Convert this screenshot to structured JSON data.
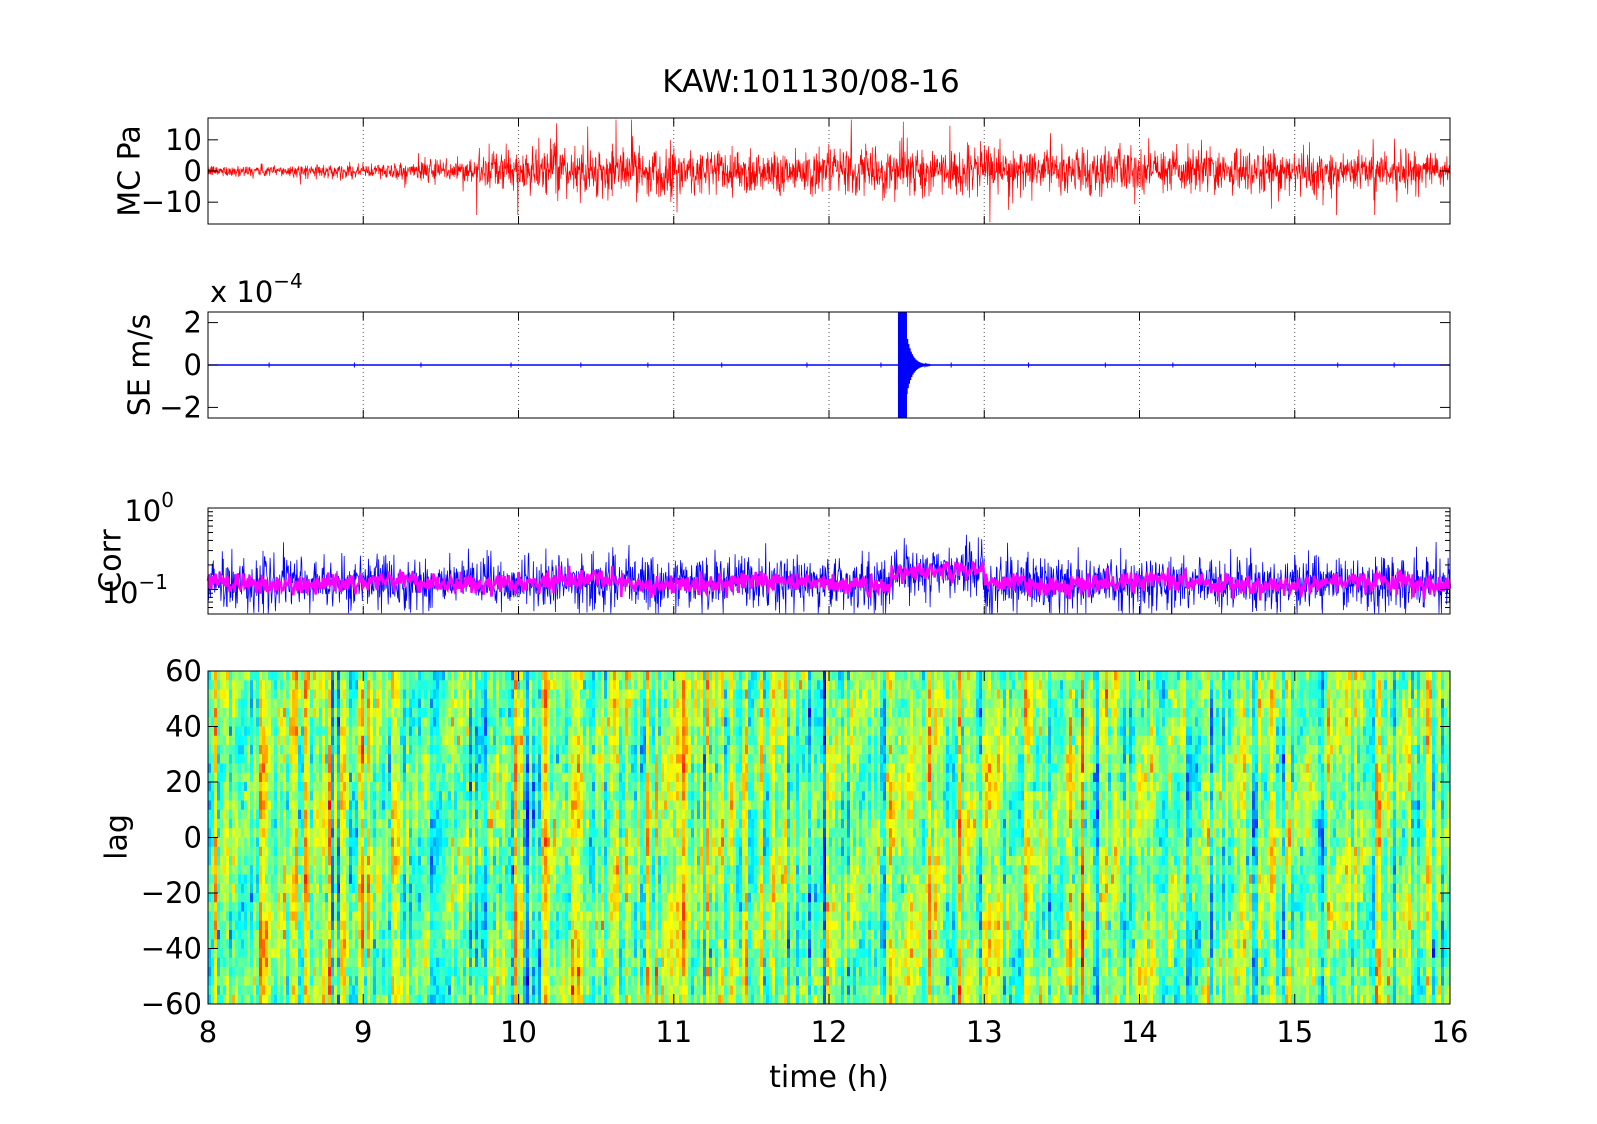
{
  "figure": {
    "title": "KAW:101130/08-16",
    "xlabel": "time (h)"
  },
  "chart_data": [
    {
      "type": "line",
      "panel": "MC",
      "ylabel": "MC Pa",
      "color": "#ff0000",
      "xlim": [
        8,
        16
      ],
      "ylim": [
        -17,
        17
      ],
      "yticks": [
        10,
        0,
        -10
      ],
      "ytick_labels": [
        "10",
        "0",
        "−10"
      ],
      "xticks": [
        9,
        10,
        11,
        12,
        13,
        14,
        15
      ],
      "grid": "dotted vertical",
      "amplitude_envelope": {
        "x": [
          8,
          9,
          9.5,
          10,
          11,
          12,
          12.5,
          13,
          14,
          15,
          16
        ],
        "y": [
          2,
          2.5,
          4,
          8,
          9,
          8,
          9,
          8,
          8,
          8,
          6
        ]
      }
    },
    {
      "type": "line",
      "panel": "SE",
      "ylabel": "SE m/s",
      "scale_label": "x 10",
      "scale_exponent": "−4",
      "color": "#0000ff",
      "xlim": [
        8,
        16
      ],
      "ylim": [
        -2.5,
        2.5
      ],
      "yticks": [
        2,
        0,
        -2
      ],
      "ytick_labels": [
        "2",
        "0",
        "−2"
      ],
      "xticks": [
        9,
        10,
        11,
        12,
        13,
        14,
        15
      ],
      "grid": "dotted vertical",
      "events": [
        {
          "x": 12.47,
          "amplitude": 2.5,
          "note": "saturated burst"
        }
      ],
      "baseline": 0
    },
    {
      "type": "line",
      "panel": "Corr",
      "ylabel": "Corr",
      "yscale": "log",
      "ylim": [
        0.05,
        1
      ],
      "ytick_labels": [
        {
          "base": "10",
          "exp": "0"
        },
        {
          "base": "10",
          "exp": "−1"
        }
      ],
      "series": [
        {
          "color": "#0000ff",
          "mean": 0.12
        },
        {
          "color": "#ff00ff",
          "mean": 0.12
        }
      ],
      "xlim": [
        8,
        16
      ],
      "xticks": [
        9,
        10,
        11,
        12,
        13,
        14,
        15
      ],
      "grid": "dotted vertical",
      "bump": {
        "x": [
          12.4,
          13.0
        ],
        "factor": 1.35
      }
    },
    {
      "type": "heatmap",
      "panel": "lag",
      "ylabel": "lag",
      "colormap": "jet",
      "xlim": [
        8,
        16
      ],
      "ylim": [
        -60,
        60
      ],
      "xticks": [
        8,
        9,
        10,
        11,
        12,
        13,
        14,
        15,
        16
      ],
      "xtick_labels": [
        "8",
        "9",
        "10",
        "11",
        "12",
        "13",
        "14",
        "15",
        "16"
      ],
      "yticks": [
        60,
        40,
        20,
        0,
        -20,
        -40,
        -60
      ],
      "ytick_labels": [
        "60",
        "40",
        "20",
        "0",
        "−20",
        "−40",
        "−60"
      ]
    }
  ]
}
